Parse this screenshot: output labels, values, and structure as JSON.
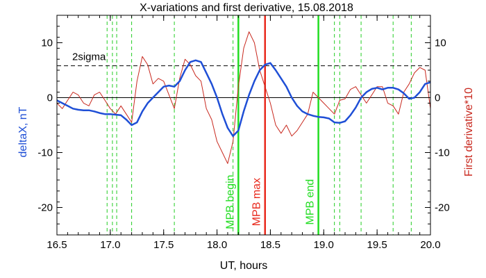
{
  "chart_data": {
    "type": "line",
    "title": "X-variations and first derivative, 15.08.2018",
    "xlabel": "UT, hours",
    "ylabel_left": "deltaX, nT",
    "ylabel_right": "First derivative*10",
    "xlim": [
      16.5,
      20.0
    ],
    "ylim": [
      -25,
      15
    ],
    "xticks": [
      "16.5",
      "17.0",
      "17.5",
      "18.0",
      "18.5",
      "19.0",
      "19.5",
      "20.0"
    ],
    "yticks_left": [
      "10",
      "0",
      "-10",
      "-20"
    ],
    "yticks_right": [
      "10",
      "0",
      "-10",
      "-20"
    ],
    "threshold": {
      "label": "2sigma",
      "value": 5.8
    },
    "zero_line": 0,
    "colors": {
      "deltaX": "#1f4fd6",
      "derivative": "#c8281e",
      "mpb_edge": "#22dd22",
      "mpb_max": "#e8291c",
      "guide": "#22cc22",
      "threshold": "#000000"
    },
    "markers": [
      {
        "x": 18.2,
        "label": "MPB begin",
        "color": "#22dd22"
      },
      {
        "x": 18.45,
        "label": "MPB max",
        "color": "#e8291c"
      },
      {
        "x": 18.95,
        "label": "MPB end",
        "color": "#22dd22"
      }
    ],
    "guide_lines": [
      16.97,
      17.02,
      17.06,
      17.2,
      17.6,
      18.15,
      19.1,
      19.15,
      19.35,
      19.65,
      19.82
    ],
    "series": [
      {
        "key": "deltaX",
        "name": "deltaX, nT",
        "color": "#1f4fd6",
        "x": [
          16.5,
          16.55,
          16.6,
          16.65,
          16.7,
          16.75,
          16.8,
          16.85,
          16.9,
          16.95,
          17.0,
          17.05,
          17.1,
          17.15,
          17.2,
          17.25,
          17.3,
          17.35,
          17.4,
          17.45,
          17.5,
          17.55,
          17.6,
          17.65,
          17.7,
          17.75,
          17.8,
          17.85,
          17.9,
          17.95,
          18.0,
          18.05,
          18.1,
          18.15,
          18.2,
          18.25,
          18.3,
          18.35,
          18.4,
          18.45,
          18.5,
          18.55,
          18.6,
          18.65,
          18.7,
          18.75,
          18.8,
          18.85,
          18.9,
          18.95,
          19.0,
          19.05,
          19.1,
          19.15,
          19.2,
          19.25,
          19.3,
          19.35,
          19.4,
          19.45,
          19.5,
          19.55,
          19.6,
          19.65,
          19.7,
          19.75,
          19.8,
          19.85,
          19.9,
          19.95,
          20.0
        ],
        "values": [
          -0.5,
          -1.0,
          -1.5,
          -2.0,
          -2.2,
          -2.3,
          -2.3,
          -2.5,
          -2.8,
          -3.0,
          -3.0,
          -3.1,
          -3.2,
          -4.0,
          -5.0,
          -4.5,
          -2.5,
          -1.0,
          0.0,
          1.0,
          2.0,
          2.2,
          2.0,
          3.0,
          5.0,
          6.5,
          6.8,
          6.5,
          4.5,
          2.5,
          0.0,
          -3.0,
          -5.5,
          -7.0,
          -6.0,
          -2.5,
          0.5,
          3.0,
          5.0,
          6.0,
          6.3,
          5.0,
          3.5,
          2.0,
          0.0,
          -1.5,
          -2.5,
          -3.0,
          -3.3,
          -3.5,
          -3.6,
          -3.8,
          -4.5,
          -4.6,
          -4.3,
          -3.2,
          -1.8,
          0.0,
          1.0,
          1.6,
          1.8,
          1.5,
          1.8,
          1.8,
          1.5,
          0.8,
          -0.2,
          0.0,
          1.0,
          2.5,
          2.8
        ]
      },
      {
        "key": "derivative",
        "name": "First derivative*10",
        "color": "#c8281e",
        "x": [
          16.5,
          16.55,
          16.6,
          16.65,
          16.7,
          16.75,
          16.8,
          16.85,
          16.9,
          16.95,
          17.0,
          17.05,
          17.1,
          17.15,
          17.2,
          17.25,
          17.3,
          17.35,
          17.4,
          17.45,
          17.5,
          17.55,
          17.6,
          17.65,
          17.7,
          17.75,
          17.8,
          17.85,
          17.9,
          17.95,
          18.0,
          18.05,
          18.1,
          18.15,
          18.2,
          18.25,
          18.3,
          18.35,
          18.4,
          18.45,
          18.5,
          18.55,
          18.6,
          18.65,
          18.7,
          18.75,
          18.8,
          18.85,
          18.9,
          18.95,
          19.0,
          19.05,
          19.1,
          19.15,
          19.2,
          19.25,
          19.3,
          19.35,
          19.4,
          19.45,
          19.5,
          19.55,
          19.6,
          19.65,
          19.7,
          19.75,
          19.8,
          19.85,
          19.9,
          19.95,
          20.0
        ],
        "values": [
          -1.0,
          -2.0,
          -0.5,
          1.0,
          0.5,
          -1.0,
          -1.5,
          0.5,
          1.0,
          -0.5,
          -2.0,
          -3.0,
          -1.5,
          -3.0,
          -4.5,
          3.0,
          7.5,
          6.0,
          2.5,
          3.5,
          3.0,
          0.5,
          -2.0,
          3.5,
          7.0,
          6.0,
          4.0,
          3.0,
          -2.0,
          -4.0,
          -8.0,
          -10.0,
          -12.0,
          -8.0,
          2.0,
          9.0,
          12.0,
          10.0,
          5.0,
          2.0,
          -1.0,
          -5.0,
          -6.5,
          -5.0,
          -7.0,
          -6.0,
          -4.5,
          -3.0,
          1.0,
          0.0,
          -1.0,
          -2.0,
          -3.0,
          -0.5,
          -0.2,
          1.5,
          2.0,
          0.5,
          -1.0,
          0.5,
          2.0,
          2.0,
          -1.0,
          -1.5,
          -3.0,
          1.0,
          2.5,
          4.5,
          5.5,
          5.0,
          -2.0
        ]
      }
    ]
  }
}
